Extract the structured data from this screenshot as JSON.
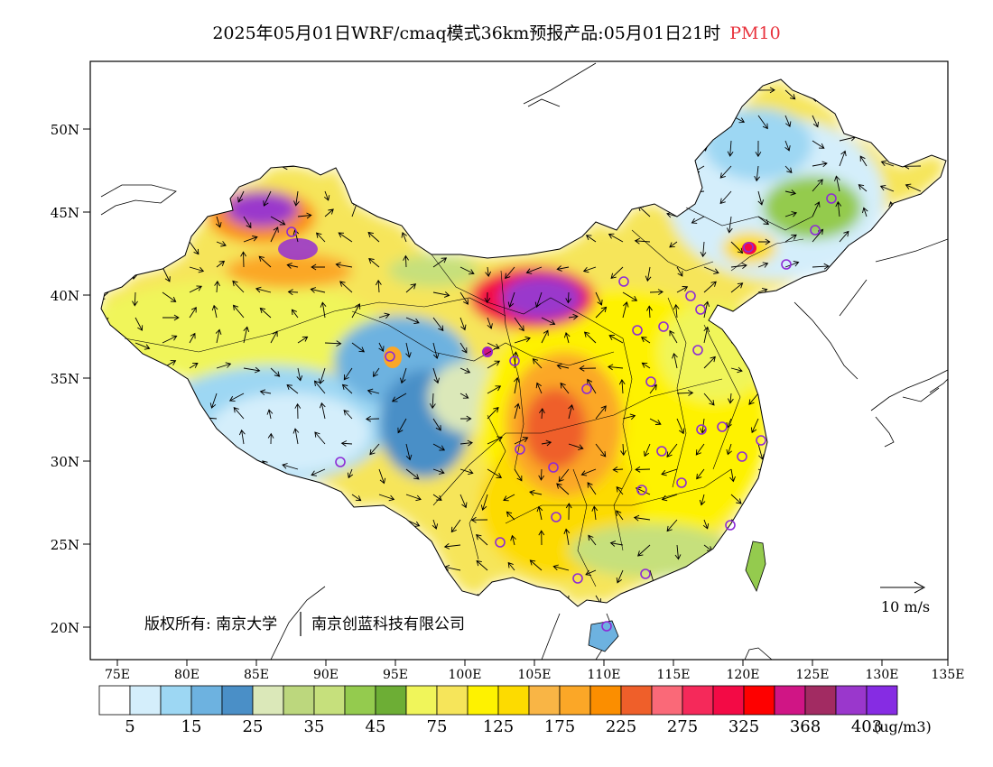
{
  "title": {
    "main": "2025年05月01日WRF/cmaq模式36km预报产品:05月01日21时",
    "variable": "PM10"
  },
  "map": {
    "lat_ticks": [
      "50N",
      "45N",
      "40N",
      "35N",
      "30N",
      "25N",
      "20N"
    ],
    "lon_ticks": [
      "75E",
      "80E",
      "85E",
      "90E",
      "95E",
      "100E",
      "105E",
      "110E",
      "115E",
      "120E",
      "125E",
      "130E",
      "135E"
    ],
    "copyright": "版权所有: 南京大学",
    "company": "南京创蓝科技有限公司",
    "vector_label": "10 m/s"
  },
  "colorbar": {
    "colors": [
      "#ffffff",
      "#d4eefb",
      "#9dd7f3",
      "#6db2e0",
      "#4a8fc7",
      "#dbe8b9",
      "#bcd77d",
      "#c6e07c",
      "#94cb4e",
      "#6dae35",
      "#f0f55a",
      "#f6e55a",
      "#fef200",
      "#fddb00",
      "#f9b545",
      "#fba727",
      "#fb8e00",
      "#ef5f2a",
      "#fa6978",
      "#f5295a",
      "#f30a45",
      "#fe0000",
      "#d01585",
      "#a22b62",
      "#9a37cc",
      "#862ce3"
    ],
    "labels": [
      "5",
      "15",
      "25",
      "35",
      "45",
      "75",
      "125",
      "175",
      "225",
      "275",
      "325",
      "368",
      "403"
    ],
    "unit": "(ug/m3)"
  }
}
